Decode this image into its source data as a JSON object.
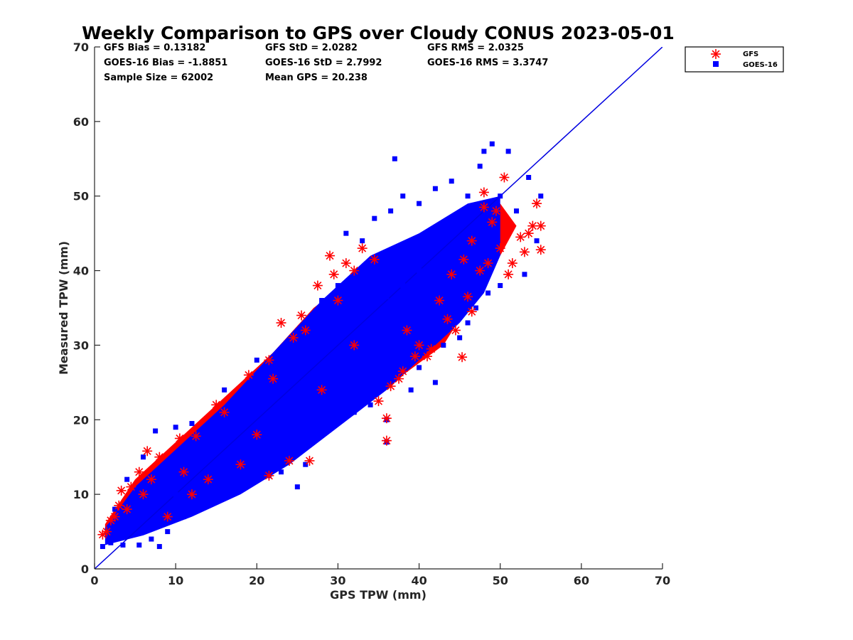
{
  "chart_data": {
    "type": "scatter",
    "title": "Weekly Comparison to GPS over Cloudy CONUS 2023-05-01",
    "xlabel": "GPS TPW (mm)",
    "ylabel": "Measured TPW (mm)",
    "xlim": [
      0,
      70
    ],
    "ylim": [
      0,
      70
    ],
    "x_ticks": [
      "0",
      "10",
      "20",
      "30",
      "40",
      "50",
      "60",
      "70"
    ],
    "y_ticks": [
      "0",
      "10",
      "20",
      "30",
      "40",
      "50",
      "60",
      "70"
    ],
    "grid": false,
    "legend_position": "outside top-right",
    "stats": [
      [
        "GFS Bias = 0.13182",
        "GFS StD = 2.0282",
        "GFS RMS = 2.0325"
      ],
      [
        "GOES-16 Bias = -1.8851",
        "GOES-16 StD = 2.7992",
        "GOES-16 RMS = 3.3747"
      ],
      [
        "Sample Size = 62002",
        "Mean GPS = 20.238",
        ""
      ]
    ],
    "reference_line": {
      "x": [
        0,
        70
      ],
      "y": [
        0,
        70
      ],
      "color": "#0000e0"
    },
    "series": [
      {
        "name": "GFS",
        "marker": "asterisk",
        "color": "#ff0000",
        "points": [
          [
            1.0,
            4.6
          ],
          [
            2.0,
            6.5
          ],
          [
            3.3,
            10.5
          ],
          [
            4.5,
            11.0
          ],
          [
            6.5,
            15.8
          ],
          [
            3.0,
            8.5
          ],
          [
            5.5,
            13.0
          ],
          [
            8.0,
            15.0
          ],
          [
            10.5,
            17.5
          ],
          [
            12.5,
            17.8
          ],
          [
            15.0,
            22.0
          ],
          [
            19.0,
            26.0
          ],
          [
            21.5,
            28.0
          ],
          [
            22.0,
            25.5
          ],
          [
            23.0,
            33.0
          ],
          [
            24.5,
            31.0
          ],
          [
            25.5,
            34.0
          ],
          [
            26.0,
            32.0
          ],
          [
            27.5,
            38.0
          ],
          [
            29.0,
            42.0
          ],
          [
            29.5,
            39.5
          ],
          [
            31.0,
            41.0
          ],
          [
            32.0,
            40.0
          ],
          [
            33.0,
            43.0
          ],
          [
            20.0,
            18.0
          ],
          [
            24.0,
            14.5
          ],
          [
            26.5,
            14.5
          ],
          [
            21.5,
            12.5
          ],
          [
            36.5,
            24.5
          ],
          [
            37.5,
            25.5
          ],
          [
            38.0,
            26.5
          ],
          [
            35.0,
            22.5
          ],
          [
            39.5,
            28.5
          ],
          [
            41.0,
            28.5
          ],
          [
            41.5,
            29.5
          ],
          [
            36.0,
            20.2
          ],
          [
            36.0,
            17.2
          ],
          [
            44.5,
            32.0
          ],
          [
            45.3,
            28.4
          ],
          [
            46.5,
            34.5
          ],
          [
            46.0,
            36.5
          ],
          [
            44.0,
            39.5
          ],
          [
            47.5,
            40.0
          ],
          [
            48.5,
            41.0
          ],
          [
            49.0,
            46.5
          ],
          [
            50.0,
            43.0
          ],
          [
            51.0,
            39.5
          ],
          [
            51.5,
            41.0
          ],
          [
            53.0,
            42.5
          ],
          [
            53.5,
            45.0
          ],
          [
            54.0,
            46.0
          ],
          [
            55.0,
            42.8
          ],
          [
            55.0,
            46.0
          ],
          [
            54.5,
            49.0
          ],
          [
            52.5,
            44.5
          ],
          [
            48.0,
            50.5
          ],
          [
            49.5,
            48.0
          ],
          [
            46.5,
            44.0
          ],
          [
            45.5,
            41.5
          ],
          [
            48.0,
            48.5
          ],
          [
            50.5,
            52.5
          ],
          [
            42.5,
            36.0
          ],
          [
            43.5,
            33.5
          ],
          [
            30.0,
            36.0
          ],
          [
            34.5,
            41.5
          ],
          [
            38.5,
            32.0
          ],
          [
            40.0,
            30.0
          ],
          [
            28.0,
            24.0
          ],
          [
            32.0,
            30.0
          ],
          [
            18.0,
            14.0
          ],
          [
            14.0,
            12.0
          ],
          [
            16.0,
            21.0
          ],
          [
            11.0,
            13.0
          ],
          [
            12.0,
            10.0
          ],
          [
            9.0,
            7.0
          ],
          [
            7.0,
            12.0
          ],
          [
            4.0,
            8.0
          ],
          [
            6.0,
            10.0
          ],
          [
            2.5,
            7.0
          ],
          [
            1.5,
            5.0
          ]
        ]
      },
      {
        "name": "GOES-16",
        "marker": "square",
        "color": "#0000ff",
        "points": [
          [
            1.0,
            3.0
          ],
          [
            2.0,
            3.5
          ],
          [
            3.5,
            3.2
          ],
          [
            5.5,
            3.2
          ],
          [
            8.0,
            3.0
          ],
          [
            2.5,
            8.0
          ],
          [
            4.0,
            12.0
          ],
          [
            6.0,
            15.0
          ],
          [
            7.5,
            18.5
          ],
          [
            10.0,
            19.0
          ],
          [
            12.0,
            19.5
          ],
          [
            14.0,
            17.0
          ],
          [
            16.0,
            24.0
          ],
          [
            18.5,
            21.0
          ],
          [
            20.0,
            28.0
          ],
          [
            22.0,
            25.0
          ],
          [
            24.0,
            30.0
          ],
          [
            26.0,
            33.0
          ],
          [
            28.0,
            36.0
          ],
          [
            30.0,
            38.0
          ],
          [
            31.0,
            45.0
          ],
          [
            33.0,
            44.0
          ],
          [
            34.5,
            47.0
          ],
          [
            36.5,
            48.0
          ],
          [
            37.0,
            55.0
          ],
          [
            38.0,
            50.0
          ],
          [
            40.0,
            49.0
          ],
          [
            42.0,
            51.0
          ],
          [
            44.0,
            52.0
          ],
          [
            46.0,
            50.0
          ],
          [
            47.5,
            54.0
          ],
          [
            48.0,
            56.0
          ],
          [
            49.0,
            57.0
          ],
          [
            51.0,
            56.0
          ],
          [
            52.0,
            48.0
          ],
          [
            53.5,
            52.5
          ],
          [
            55.0,
            50.0
          ],
          [
            54.5,
            44.0
          ],
          [
            53.0,
            39.5
          ],
          [
            50.0,
            38.0
          ],
          [
            48.5,
            37.0
          ],
          [
            47.0,
            35.0
          ],
          [
            46.0,
            33.0
          ],
          [
            45.0,
            31.0
          ],
          [
            43.0,
            30.0
          ],
          [
            42.0,
            25.0
          ],
          [
            40.0,
            27.0
          ],
          [
            39.0,
            24.0
          ],
          [
            37.5,
            28.0
          ],
          [
            36.0,
            20.0
          ],
          [
            36.0,
            17.0
          ],
          [
            34.0,
            22.0
          ],
          [
            32.0,
            21.0
          ],
          [
            30.0,
            22.0
          ],
          [
            27.0,
            19.0
          ],
          [
            26.0,
            14.0
          ],
          [
            25.0,
            11.0
          ],
          [
            23.0,
            13.0
          ],
          [
            21.5,
            12.5
          ],
          [
            19.0,
            13.0
          ],
          [
            17.0,
            12.0
          ],
          [
            15.0,
            9.0
          ],
          [
            13.0,
            8.0
          ],
          [
            11.0,
            7.0
          ],
          [
            9.0,
            5.0
          ],
          [
            7.0,
            4.0
          ],
          [
            26.0,
            25.0
          ],
          [
            28.0,
            29.0
          ],
          [
            30.0,
            31.0
          ],
          [
            32.0,
            33.0
          ],
          [
            34.0,
            35.0
          ],
          [
            36.0,
            36.5
          ],
          [
            38.0,
            38.0
          ],
          [
            40.0,
            40.0
          ],
          [
            42.0,
            41.0
          ],
          [
            44.0,
            43.0
          ],
          [
            46.0,
            45.0
          ],
          [
            48.0,
            47.0
          ],
          [
            50.0,
            50.0
          ],
          [
            22.0,
            20.0
          ],
          [
            24.0,
            22.0
          ],
          [
            20.0,
            18.0
          ],
          [
            18.0,
            17.0
          ],
          [
            16.0,
            15.0
          ],
          [
            14.0,
            13.0
          ],
          [
            12.0,
            11.0
          ],
          [
            10.0,
            10.0
          ],
          [
            8.0,
            9.0
          ],
          [
            6.0,
            8.0
          ],
          [
            4.0,
            6.0
          ],
          [
            2.0,
            4.5
          ]
        ]
      }
    ],
    "dense_band": {
      "gfs_lower": [
        [
          1.3,
          4.2
        ],
        [
          6,
          6.5
        ],
        [
          12,
          9
        ],
        [
          20,
          13
        ],
        [
          26,
          16.5
        ],
        [
          32,
          21.5
        ],
        [
          38,
          26
        ],
        [
          43,
          30
        ],
        [
          47,
          37
        ],
        [
          50,
          42
        ],
        [
          52,
          46
        ]
      ],
      "gfs_upper": [
        [
          52,
          46
        ],
        [
          50,
          49
        ],
        [
          46,
          47
        ],
        [
          40,
          43
        ],
        [
          33,
          40
        ],
        [
          27,
          35
        ],
        [
          22,
          29
        ],
        [
          16,
          23
        ],
        [
          10,
          17
        ],
        [
          5,
          12
        ],
        [
          1.3,
          6
        ]
      ],
      "goes_lower": [
        [
          1.3,
          3.2
        ],
        [
          6,
          4.5
        ],
        [
          12,
          7
        ],
        [
          18,
          10
        ],
        [
          24,
          14
        ],
        [
          30,
          19
        ],
        [
          36,
          24
        ],
        [
          41,
          29
        ],
        [
          45,
          33
        ],
        [
          48,
          37
        ],
        [
          50,
          42
        ]
      ],
      "goes_upper": [
        [
          50,
          42
        ],
        [
          50,
          50
        ],
        [
          46,
          49
        ],
        [
          40,
          45
        ],
        [
          34,
          42
        ],
        [
          28,
          36
        ],
        [
          22,
          29
        ],
        [
          16,
          22
        ],
        [
          10,
          16
        ],
        [
          5,
          11
        ],
        [
          1.3,
          5.5
        ]
      ]
    }
  }
}
